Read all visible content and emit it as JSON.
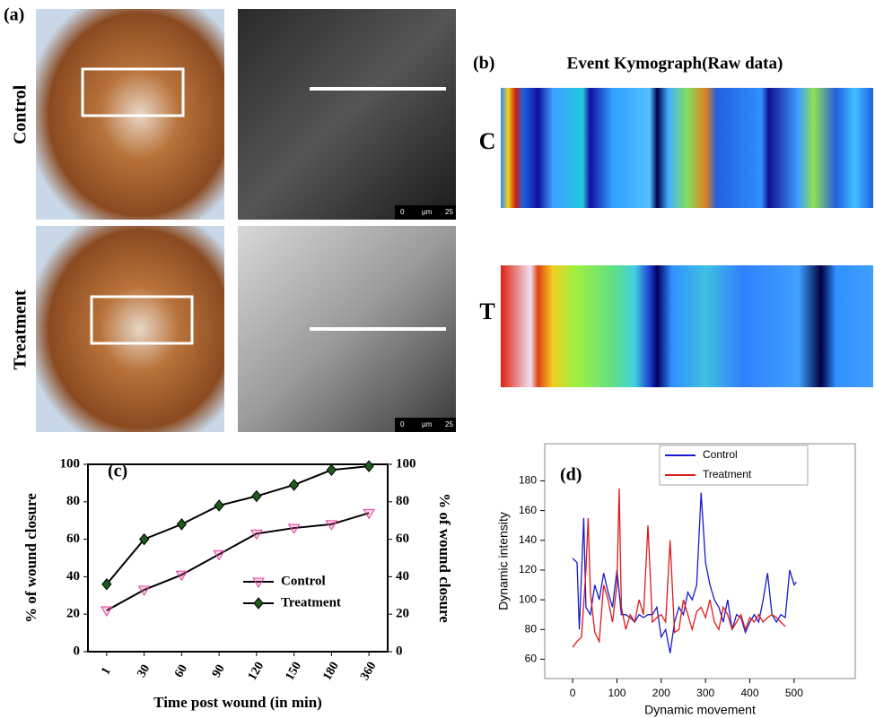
{
  "panel_a": {
    "label": "(a)",
    "rows": [
      "Control",
      "Treatment"
    ],
    "scale_bar": {
      "start": "0",
      "unit": "µm",
      "end": "25"
    }
  },
  "panel_b": {
    "label": "(b)",
    "title": "Event Kymograph(Raw data)",
    "rows": [
      "C",
      "T"
    ]
  },
  "chart_data": [
    {
      "type": "line",
      "label": "(c)",
      "xlabel": "Time post wound (in min)",
      "ylabel": "% of wound closure",
      "y2label": "% of wound closure",
      "categories": [
        "1",
        "30",
        "60",
        "90",
        "120",
        "150",
        "180",
        "360"
      ],
      "series": [
        {
          "name": "Control",
          "color": "#e0409a",
          "line_color": "#000000",
          "marker": "triangle-down",
          "values": [
            22,
            33,
            41,
            52,
            63,
            66,
            68,
            74
          ]
        },
        {
          "name": "Treatment",
          "color": "#1e5a1e",
          "line_color": "#000000",
          "marker": "diamond",
          "values": [
            36,
            60,
            68,
            78,
            83,
            89,
            97,
            99
          ]
        }
      ],
      "ylim": [
        0,
        100
      ],
      "yticks": [
        0,
        20,
        40,
        60,
        80,
        100
      ],
      "y2lim": [
        0,
        100
      ],
      "y2ticks": [
        0,
        20,
        40,
        60,
        80,
        100
      ],
      "legend": "lower right",
      "grid": false
    },
    {
      "type": "line",
      "label": "(d)",
      "xlabel": "Dynamic movement",
      "ylabel": "Dynamic intensity",
      "series": [
        {
          "name": "Control",
          "color": "#1a1acc",
          "x": [
            0,
            10,
            15,
            25,
            30,
            40,
            50,
            60,
            70,
            80,
            90,
            100,
            110,
            120,
            130,
            140,
            150,
            160,
            170,
            180,
            190,
            200,
            210,
            220,
            230,
            240,
            250,
            260,
            270,
            280,
            290,
            300,
            310,
            320,
            330,
            340,
            350,
            360,
            370,
            380,
            390,
            400,
            410,
            420,
            430,
            440,
            450,
            460,
            470,
            480,
            490,
            500,
            505
          ],
          "values": [
            128,
            125,
            80,
            155,
            95,
            90,
            110,
            100,
            118,
            105,
            95,
            120,
            90,
            90,
            88,
            85,
            90,
            88,
            90,
            90,
            95,
            75,
            80,
            64,
            85,
            95,
            90,
            105,
            100,
            110,
            172,
            125,
            110,
            100,
            95,
            85,
            100,
            80,
            90,
            88,
            78,
            85,
            90,
            85,
            100,
            118,
            90,
            85,
            90,
            88,
            120,
            110,
            112
          ]
        },
        {
          "name": "Treatment",
          "color": "#dd1a1a",
          "x": [
            0,
            10,
            20,
            30,
            35,
            40,
            50,
            60,
            70,
            80,
            90,
            100,
            105,
            110,
            120,
            130,
            140,
            150,
            160,
            170,
            180,
            190,
            200,
            210,
            220,
            230,
            240,
            250,
            260,
            270,
            280,
            290,
            300,
            310,
            320,
            330,
            340,
            350,
            360,
            370,
            380,
            390,
            400,
            410,
            420,
            430,
            440,
            450,
            460,
            470,
            480
          ],
          "values": [
            68,
            72,
            75,
            120,
            155,
            105,
            78,
            72,
            110,
            100,
            85,
            110,
            175,
            95,
            80,
            90,
            85,
            100,
            90,
            150,
            85,
            88,
            90,
            85,
            140,
            78,
            80,
            100,
            90,
            80,
            92,
            95,
            88,
            100,
            85,
            80,
            95,
            90,
            80,
            85,
            90,
            80,
            88,
            85,
            90,
            85,
            88,
            90,
            88,
            85,
            82
          ]
        }
      ],
      "xlim": [
        -63,
        638
      ],
      "xticks": [
        0,
        100,
        200,
        300,
        400,
        500
      ],
      "ylim": [
        47,
        205
      ],
      "yticks": [
        60,
        80,
        100,
        120,
        140,
        160,
        180
      ],
      "legend": "upper right",
      "grid": false
    }
  ]
}
